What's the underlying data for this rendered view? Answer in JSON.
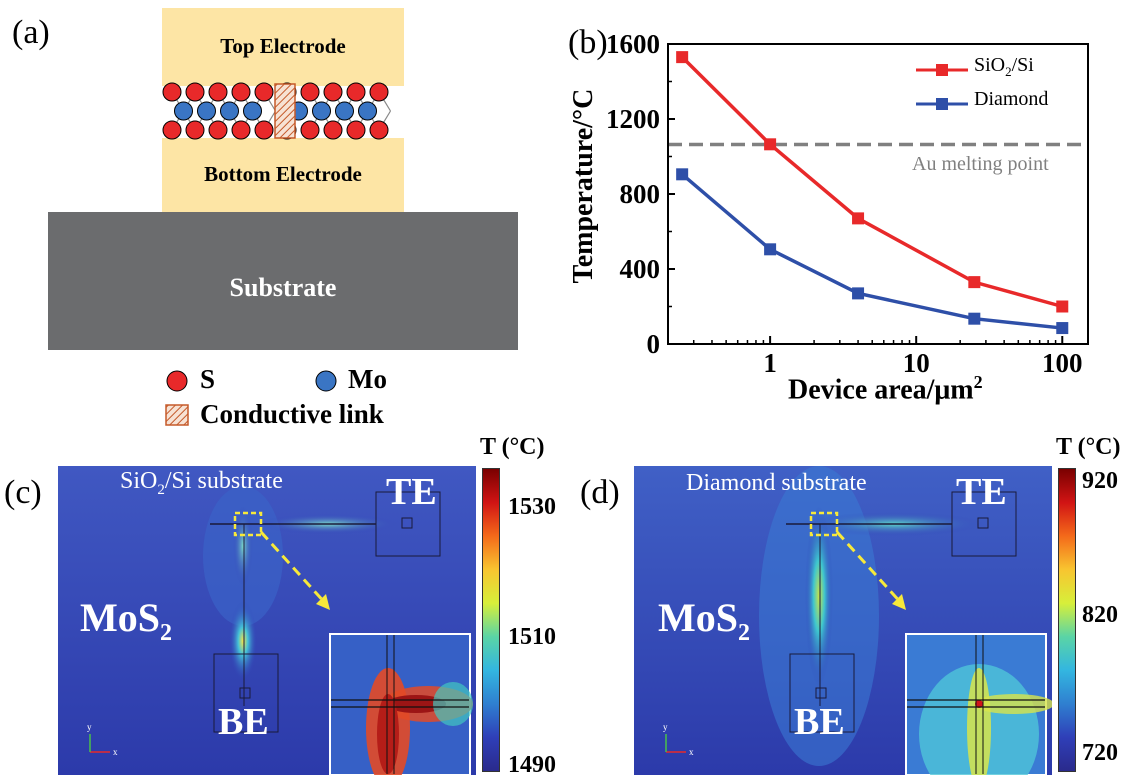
{
  "panel_a": {
    "label": "(a)",
    "top_electrode": "Top Electrode",
    "bottom_electrode": "Bottom Electrode",
    "substrate": "Substrate",
    "legend": {
      "s": "S",
      "mo": "Mo",
      "link": "Conductive link"
    },
    "colors": {
      "electrode": "#fde5a5",
      "substrate": "#6b6c6e",
      "s_atom": "#e8292a",
      "mo_atom": "#3a75c4",
      "link": "#c55a2a"
    }
  },
  "panel_b": {
    "label": "(b)",
    "threshold_label": "Au melting point"
  },
  "chart_data": {
    "type": "line",
    "xlabel": "Device area/μm",
    "xlabel_superscript": "2",
    "ylabel": "Temperature/°C",
    "x_scale": "log",
    "xlim": [
      0.2,
      150
    ],
    "ylim": [
      0,
      1600
    ],
    "x_ticks": [
      1,
      10,
      100
    ],
    "x_tick_labels": [
      "1",
      "10",
      "100"
    ],
    "y_ticks": [
      0,
      400,
      800,
      1200,
      1600
    ],
    "y_tick_labels": [
      "0",
      "400",
      "800",
      "1200",
      "1600"
    ],
    "x": [
      0.25,
      1,
      4,
      25,
      100
    ],
    "series": [
      {
        "name": "SiO2/Si",
        "name_main": "SiO",
        "name_sub": "2",
        "name_tail": "/Si",
        "color": "#e8292a",
        "values": [
          1530,
          1065,
          670,
          330,
          200
        ]
      },
      {
        "name": "Diamond",
        "color": "#2e4fa8",
        "values": [
          905,
          505,
          270,
          135,
          85
        ]
      }
    ],
    "threshold": {
      "value": 1064,
      "color": "#808080"
    },
    "legend_position": "top-right"
  },
  "panel_c": {
    "label": "(c)",
    "substrate_label_main": "SiO",
    "substrate_label_sub": "2",
    "substrate_label_tail": "/Si substrate",
    "te": "TE",
    "be": "BE",
    "mos2_main": "MoS",
    "mos2_sub": "2",
    "colorbar_title": "T (°C)",
    "colorbar_ticks": [
      "1530",
      "1510",
      "1490"
    ]
  },
  "panel_d": {
    "label": "(d)",
    "substrate_label": "Diamond substrate",
    "te": "TE",
    "be": "BE",
    "mos2_main": "MoS",
    "mos2_sub": "2",
    "colorbar_title": "T (°C)",
    "colorbar_ticks": [
      "920",
      "820",
      "720"
    ]
  }
}
